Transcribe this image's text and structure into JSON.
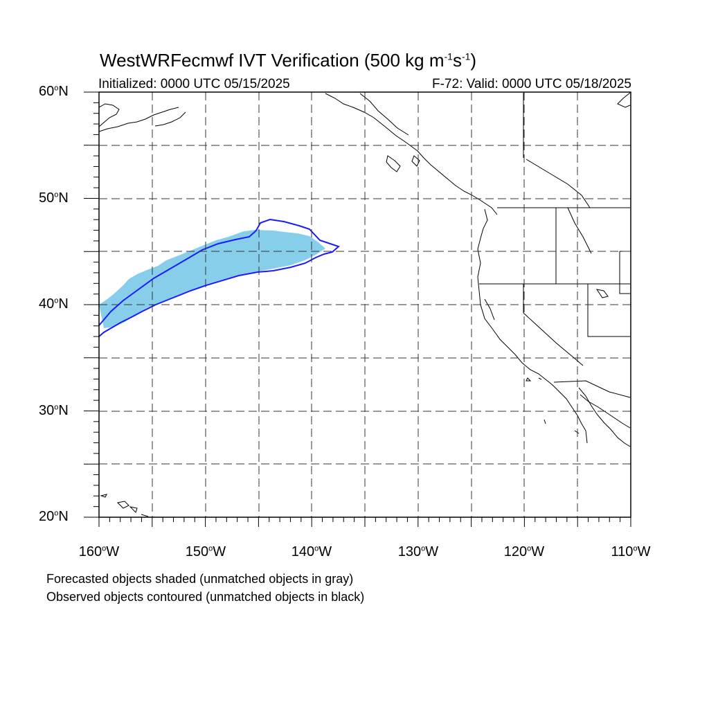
{
  "title": {
    "text": "WestWRFecmwf IVT Verification (500 kg m",
    "exp1": "-1",
    "mid": "s",
    "exp2": "-1",
    "tail": ")"
  },
  "subtitle_left": "Initialized: 0000 UTC 05/15/2025",
  "subtitle_right": "F-72: Valid: 0000 UTC 05/18/2025",
  "lat_labels": [
    {
      "deg": "60",
      "suffix": "N"
    },
    {
      "deg": "50",
      "suffix": "N"
    },
    {
      "deg": "40",
      "suffix": "N"
    },
    {
      "deg": "30",
      "suffix": "N"
    },
    {
      "deg": "20",
      "suffix": "N"
    }
  ],
  "lon_labels": [
    {
      "deg": "160",
      "suffix": "W"
    },
    {
      "deg": "150",
      "suffix": "W"
    },
    {
      "deg": "140",
      "suffix": "W"
    },
    {
      "deg": "130",
      "suffix": "W"
    },
    {
      "deg": "120",
      "suffix": "W"
    },
    {
      "deg": "110",
      "suffix": "W"
    }
  ],
  "degree_symbol": "o",
  "footnotes": [
    "Forecasted objects shaded (unmatched objects in gray)",
    "Observed objects contoured (unmatched objects in black)"
  ],
  "colors": {
    "forecast_fill": "#87ceeb",
    "observed_contour": "#1a1aff",
    "coastline": "#000000"
  },
  "map_extent": {
    "lon_min": -160,
    "lon_max": -110,
    "lat_min": 20,
    "lat_max": 60
  }
}
